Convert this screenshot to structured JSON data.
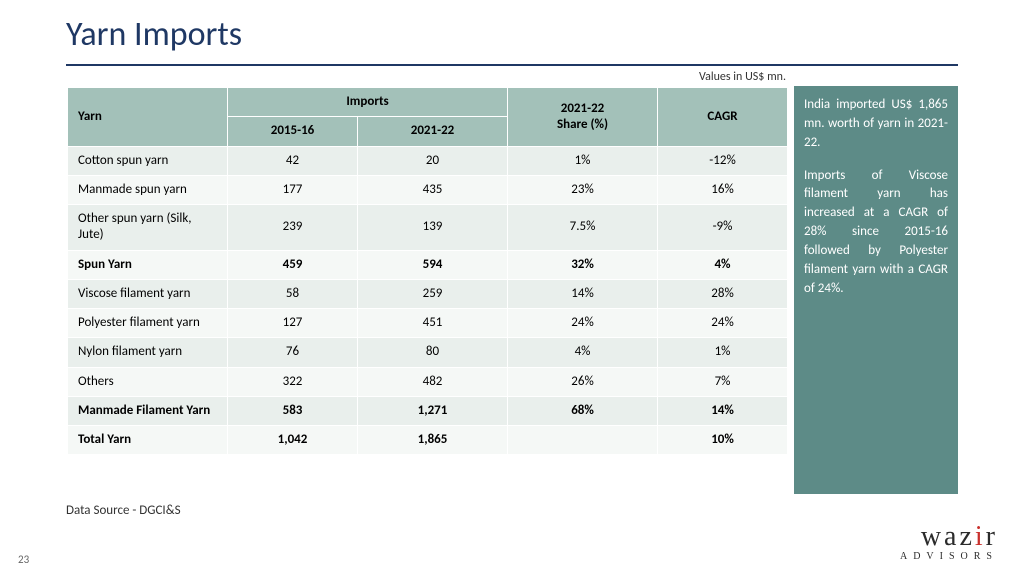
{
  "title": "Yarn Imports",
  "unit_note": "Values in US$ mn.",
  "headers": {
    "yarn": "Yarn",
    "imports": "Imports",
    "y15": "2015-16",
    "y21": "2021-22",
    "share": "2021-22\nShare (%)",
    "cagr": "CAGR"
  },
  "rows": [
    {
      "label": "Cotton spun yarn",
      "y15": "42",
      "y21": "20",
      "share": "1%",
      "cagr": "-12%",
      "bold": false
    },
    {
      "label": "Manmade spun yarn",
      "y15": "177",
      "y21": "435",
      "share": "23%",
      "cagr": "16%",
      "bold": false
    },
    {
      "label": "Other spun yarn (Silk, Jute)",
      "y15": "239",
      "y21": "139",
      "share": "7.5%",
      "cagr": "-9%",
      "bold": false
    },
    {
      "label": "Spun Yarn",
      "y15": "459",
      "y21": "594",
      "share": "32%",
      "cagr": "4%",
      "bold": true
    },
    {
      "label": "Viscose filament yarn",
      "y15": "58",
      "y21": "259",
      "share": "14%",
      "cagr": "28%",
      "bold": false
    },
    {
      "label": "Polyester filament yarn",
      "y15": "127",
      "y21": "451",
      "share": "24%",
      "cagr": "24%",
      "bold": false
    },
    {
      "label": "Nylon filament yarn",
      "y15": "76",
      "y21": "80",
      "share": "4%",
      "cagr": "1%",
      "bold": false
    },
    {
      "label": "Others",
      "y15": "322",
      "y21": "482",
      "share": "26%",
      "cagr": "7%",
      "bold": false
    },
    {
      "label": "Manmade Filament Yarn",
      "y15": "583",
      "y21": "1,271",
      "share": "68%",
      "cagr": "14%",
      "bold": true
    },
    {
      "label": "Total Yarn",
      "y15": "1,042",
      "y21": "1,865",
      "share": "",
      "cagr": "10%",
      "bold": true
    }
  ],
  "sidebox": {
    "p1": "India imported US$ 1,865 mn. worth of yarn in 2021-22.",
    "p2": "Imports of Viscose filament yarn has increased at a CAGR of 28% since 2015-16 followed by Polyester filament yarn with a CAGR of 24%."
  },
  "source": "Data Source - DGCI&S",
  "page_num": "23",
  "logo": {
    "pre": "waz",
    "accent": "i",
    "post": "r",
    "sub": "ADVISORS"
  },
  "colors": {
    "title": "#1f3864",
    "header_bg": "#a3c1b9",
    "row_odd": "#e9efec",
    "row_even": "#f5f8f6",
    "sidebox_bg": "#5d8b87",
    "sidebox_fg": "#ffffff",
    "logo_accent": "#c9302c"
  }
}
